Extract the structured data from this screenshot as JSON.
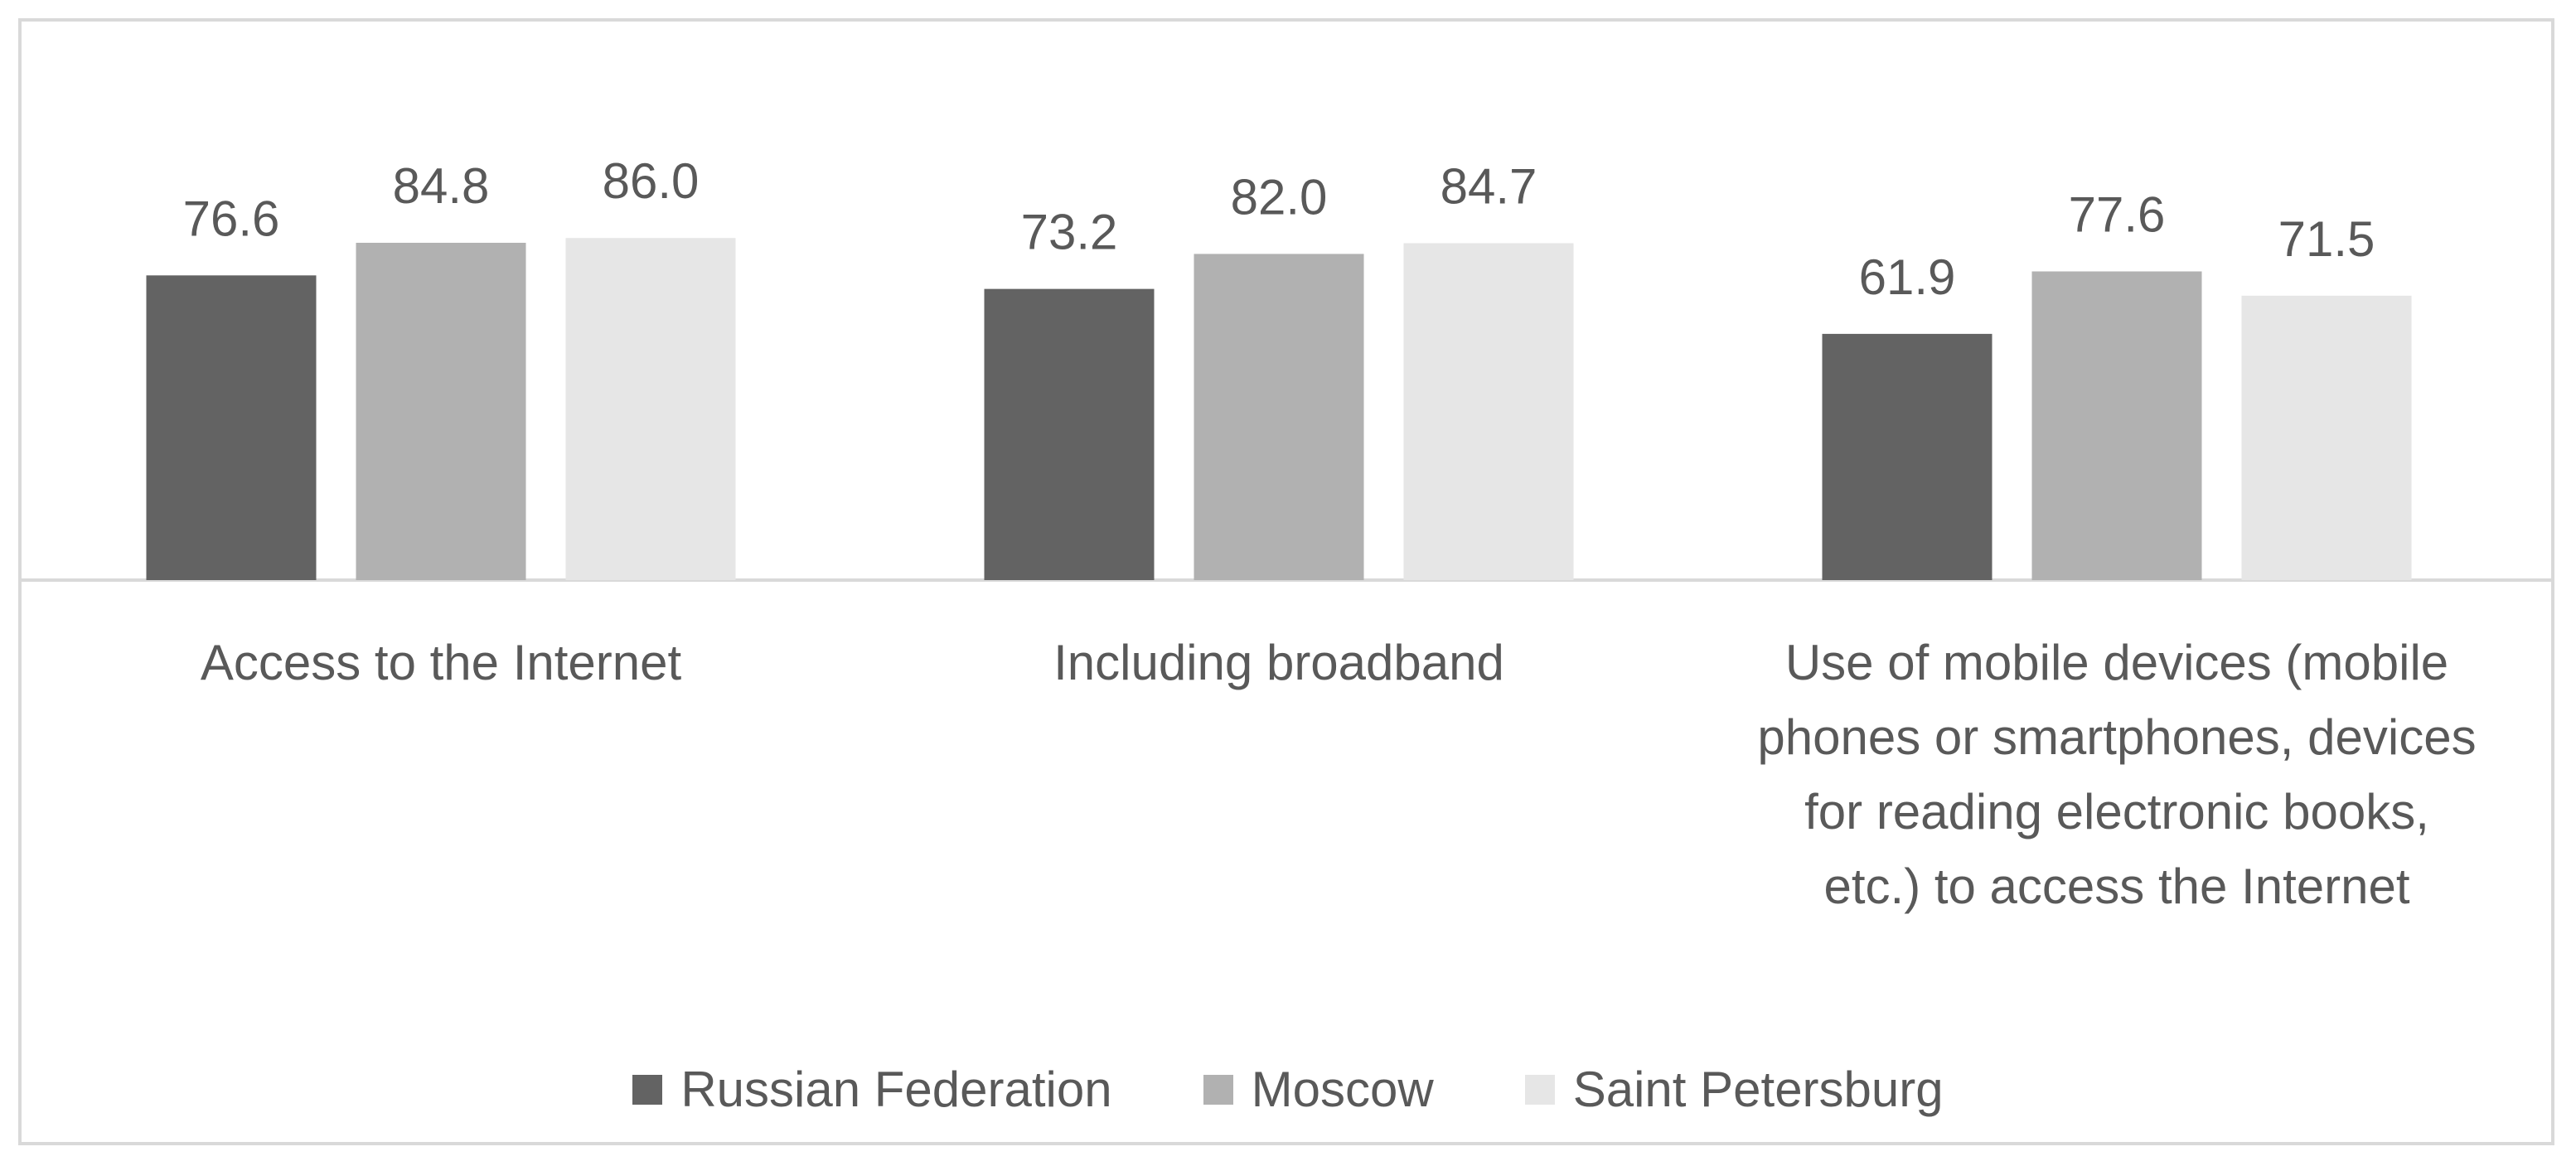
{
  "chart_data": {
    "type": "bar",
    "title": "",
    "xlabel": "",
    "ylabel": "",
    "ylim": [
      0,
      100
    ],
    "grid": false,
    "legend_position": "bottom",
    "categories": [
      "Access to the Internet",
      "Including broadband",
      "Use of mobile devices (mobile phones or smartphones, devices for reading electronic books, etc.) to access the Internet"
    ],
    "category_label_lines": [
      [
        "Access to the Internet"
      ],
      [
        "Including broadband"
      ],
      [
        "Use of mobile devices (mobile",
        "phones or smartphones, devices",
        "for reading electronic books,",
        "etc.) to access the Internet"
      ]
    ],
    "series": [
      {
        "name": "Russian Federation",
        "color": "#636363",
        "values": [
          76.6,
          73.2,
          61.9
        ],
        "labels": [
          "76.6",
          "73.2",
          "61.9"
        ]
      },
      {
        "name": "Moscow",
        "color": "#b1b1b1",
        "values": [
          84.8,
          82.0,
          77.6
        ],
        "labels": [
          "84.8",
          "82.0",
          "77.6"
        ]
      },
      {
        "name": "Saint Petersburg",
        "color": "#e6e6e6",
        "values": [
          86.0,
          84.7,
          71.5
        ],
        "labels": [
          "86.0",
          "84.7",
          "71.5"
        ]
      }
    ],
    "colors": {
      "axis_line": "#d9d9d9",
      "label_text": "#595959",
      "frame": "#d9d9d9"
    }
  }
}
